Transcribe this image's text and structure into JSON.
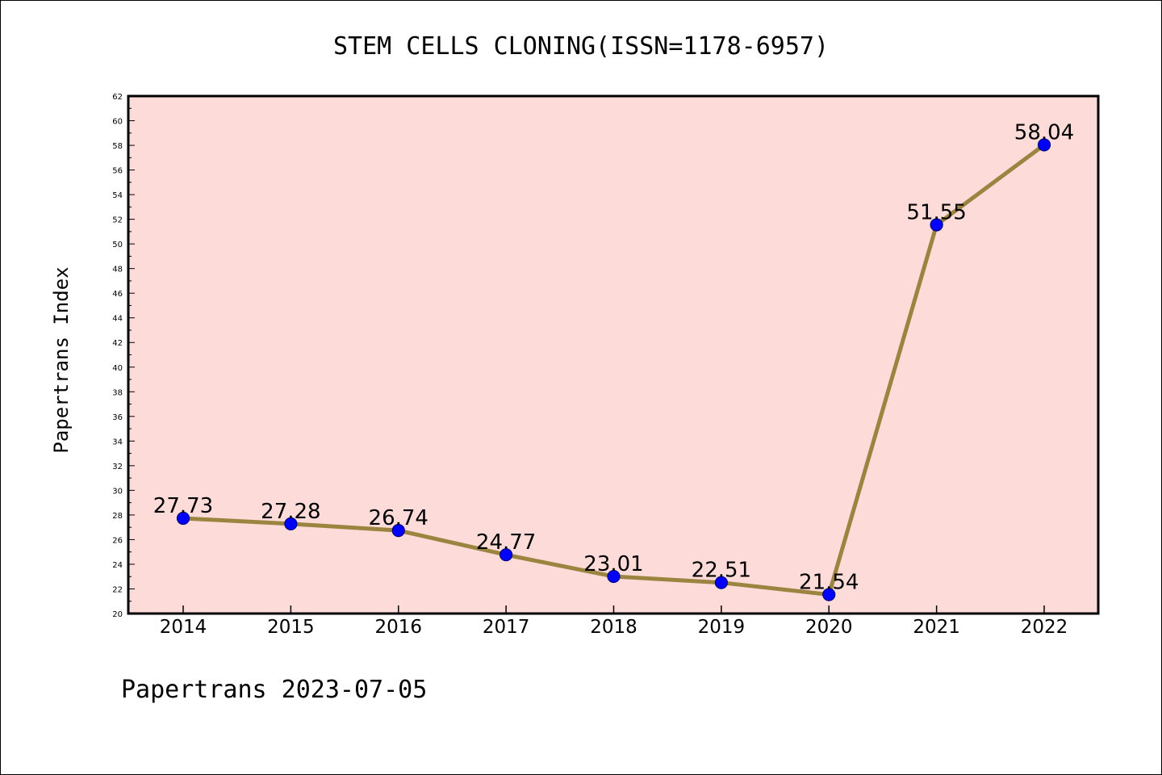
{
  "chart_data": {
    "type": "line",
    "title": "STEM CELLS CLONING(ISSN=1178-6957)",
    "ylabel": "Papertrans Index",
    "xlabel": "",
    "footer": "Papertrans 2023-07-05",
    "categories": [
      "2014",
      "2015",
      "2016",
      "2017",
      "2018",
      "2019",
      "2020",
      "2021",
      "2022"
    ],
    "values": [
      27.73,
      27.28,
      26.74,
      24.77,
      23.01,
      22.51,
      21.54,
      51.55,
      58.04
    ],
    "data_labels": [
      "27.73",
      "27.28",
      "26.74",
      "24.77",
      "23.01",
      "22.51",
      "21.54",
      "51.55",
      "58.04"
    ],
    "ylim": [
      20,
      62
    ],
    "yticks": [
      20,
      22,
      24,
      26,
      28,
      30,
      32,
      34,
      36,
      38,
      40,
      42,
      44,
      46,
      48,
      50,
      52,
      54,
      56,
      58,
      60,
      62
    ],
    "grid": false,
    "colors": {
      "plot_background": "#fddbd9",
      "line": "#9b8340",
      "marker_fill": "#0000ff",
      "marker_edge": "#000080"
    }
  }
}
